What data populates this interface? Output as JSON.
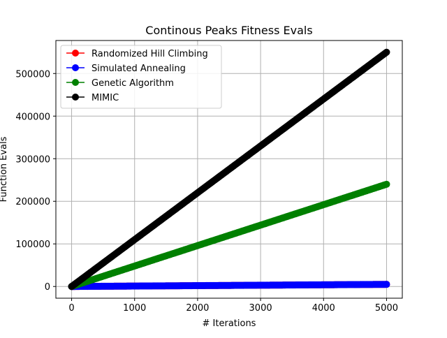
{
  "chart_data": {
    "type": "line",
    "title": "Continous Peaks Fitness Evals",
    "xlabel": "# Iterations",
    "ylabel": "Function Evals",
    "xlim": [
      -250,
      5250
    ],
    "ylim": [
      -27500,
      577500
    ],
    "xticks": [
      0,
      1000,
      2000,
      3000,
      4000,
      5000
    ],
    "yticks": [
      0,
      100000,
      200000,
      300000,
      400000,
      500000
    ],
    "xtick_labels": [
      "0",
      "1000",
      "2000",
      "3000",
      "4000",
      "5000"
    ],
    "ytick_labels": [
      "0",
      "100000",
      "200000",
      "300000",
      "400000",
      "500000"
    ],
    "grid": true,
    "legend_position": "top-left",
    "series": [
      {
        "name": "Randomized Hill Climbing",
        "color": "#ff0000",
        "x": [
          0,
          1000,
          2000,
          3000,
          4000,
          5000
        ],
        "y": [
          0,
          1000,
          2000,
          3000,
          4000,
          5000
        ]
      },
      {
        "name": "Simulated Annealing",
        "color": "#0000ff",
        "x": [
          0,
          1000,
          2000,
          3000,
          4000,
          5000
        ],
        "y": [
          0,
          1000,
          2000,
          3000,
          4000,
          5000
        ]
      },
      {
        "name": "Genetic Algorithm",
        "color": "#008000",
        "x": [
          0,
          1000,
          2000,
          3000,
          4000,
          5000
        ],
        "y": [
          0,
          48000,
          96000,
          144000,
          192000,
          240000
        ]
      },
      {
        "name": "MIMIC",
        "color": "#000000",
        "x": [
          0,
          1000,
          2000,
          3000,
          4000,
          5000
        ],
        "y": [
          0,
          110000,
          220000,
          330000,
          440000,
          550000
        ]
      }
    ]
  }
}
